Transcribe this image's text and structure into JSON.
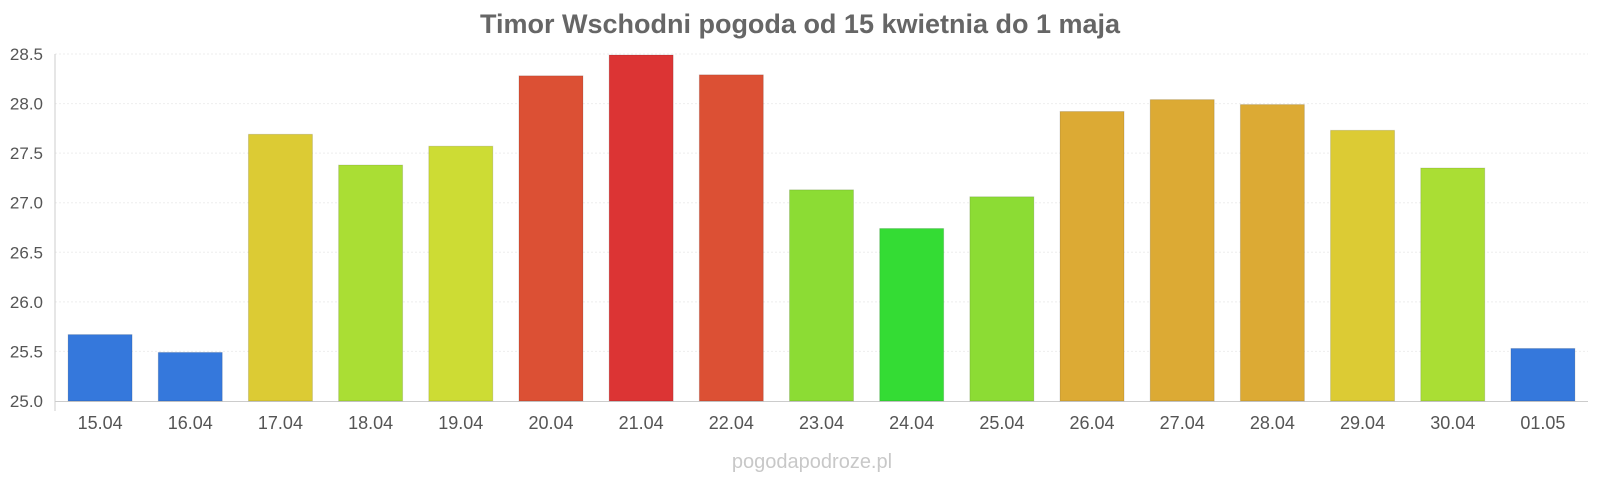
{
  "chart_data": {
    "type": "bar",
    "title": "Timor Wschodni pogoda od 15 kwietnia do 1 maja",
    "xlabel": "",
    "ylabel": "",
    "ylim": [
      25.0,
      28.5
    ],
    "yticks": [
      "25.0",
      "25.5",
      "26.0",
      "26.5",
      "27.0",
      "27.5",
      "28.0",
      "28.5"
    ],
    "grid": true,
    "legend": "none",
    "categories": [
      "15.04",
      "16.04",
      "17.04",
      "18.04",
      "19.04",
      "20.04",
      "21.04",
      "22.04",
      "23.04",
      "24.04",
      "25.04",
      "26.04",
      "27.04",
      "28.04",
      "29.04",
      "30.04",
      "01.05"
    ],
    "values": [
      25.67,
      25.49,
      27.69,
      27.38,
      27.57,
      28.28,
      28.49,
      28.29,
      27.13,
      26.74,
      27.06,
      27.92,
      28.04,
      27.99,
      27.73,
      27.35,
      25.53
    ],
    "colors": [
      "#3578dc",
      "#3578dc",
      "#dccb34",
      "#aade34",
      "#cddc34",
      "#dc5034",
      "#dc3434",
      "#dc5034",
      "#8cdc34",
      "#34dc34",
      "#8cdc34",
      "#dcaa34",
      "#dcaa34",
      "#dcaa34",
      "#dccb34",
      "#aade34",
      "#3578dc"
    ]
  },
  "watermark": "pogodapodroze.pl"
}
